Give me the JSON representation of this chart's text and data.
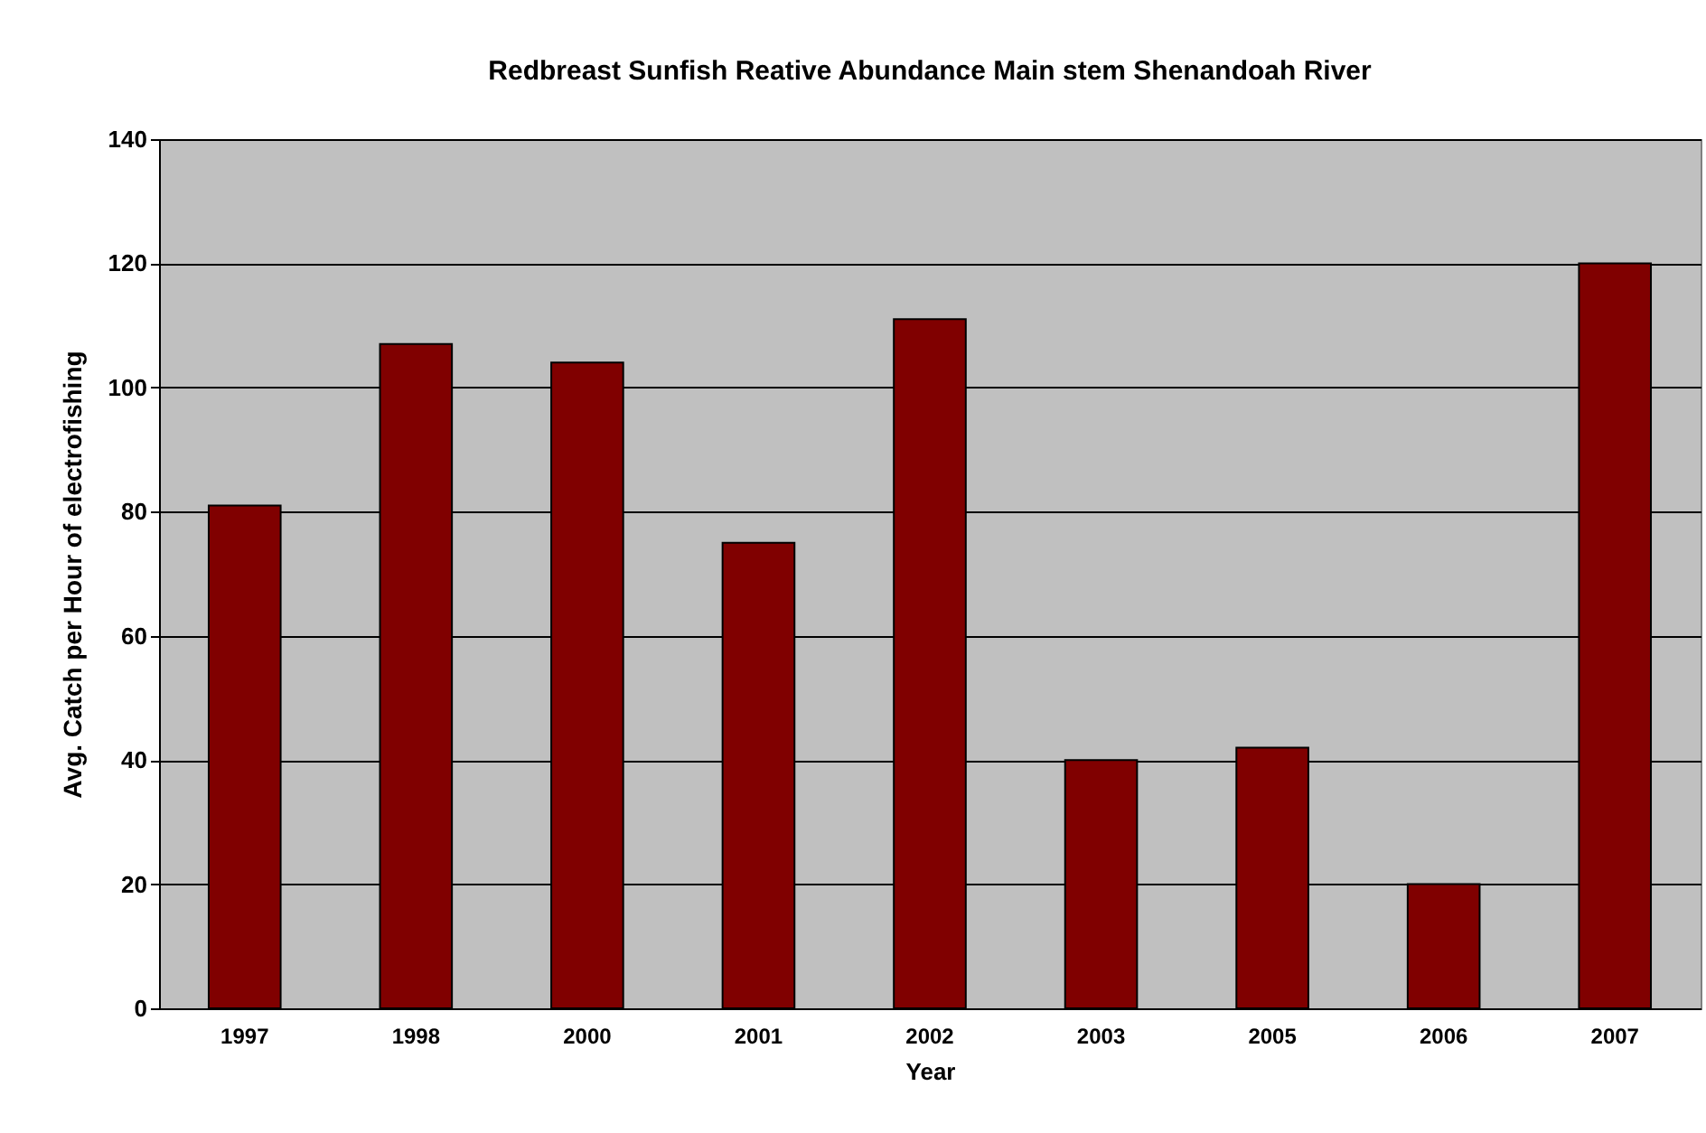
{
  "chart_data": {
    "type": "bar",
    "title": "Redbreast Sunfish Reative Abundance Main stem Shenandoah River",
    "xlabel": "Year",
    "ylabel": "Avg. Catch per Hour of electrofishing",
    "categories": [
      "1997",
      "1998",
      "2000",
      "2001",
      "2002",
      "2003",
      "2005",
      "2006",
      "2007"
    ],
    "values": [
      81,
      107,
      104,
      75,
      111,
      40,
      42,
      20,
      120
    ],
    "color": "#800000",
    "ylim": [
      0,
      140
    ],
    "yticks": [
      0,
      20,
      40,
      60,
      80,
      100,
      120,
      140
    ],
    "grid": "y"
  }
}
